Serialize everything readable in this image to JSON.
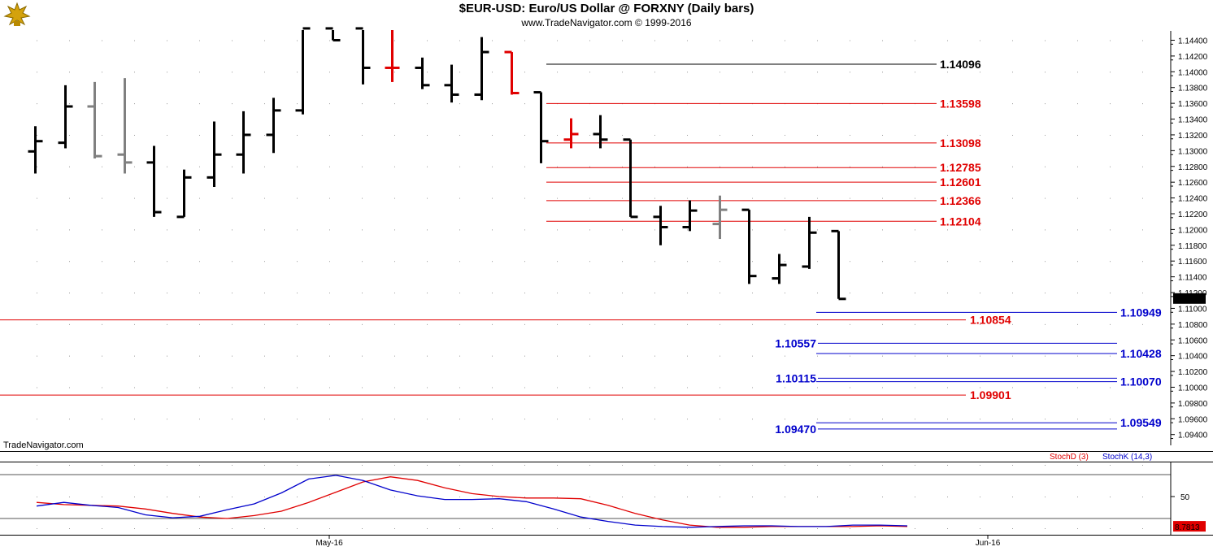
{
  "header": {
    "title": "$EUR-USD:  Euro/US Dollar @ FORXNY  (Daily bars)",
    "subtitle": "www.TradeNavigator.com © 1999-2016"
  },
  "watermark": "TradeNavigator.com",
  "colors": {
    "up_or_neutral": "#000000",
    "gray": "#808080",
    "red": "#e00000",
    "blue": "#0000cc",
    "stoch_d": "#e00000",
    "stoch_k": "#0000cc"
  },
  "chart_data": [
    {
      "type": "ohlc",
      "title": "$EUR-USD:  Euro/US Dollar @ FORXNY  (Daily bars)",
      "y_axis": {
        "ticks": [
          "1.14400",
          "1.14200",
          "1.14000",
          "1.13800",
          "1.13600",
          "1.13400",
          "1.13200",
          "1.13000",
          "1.12800",
          "1.12600",
          "1.12400",
          "1.12200",
          "1.12000",
          "1.11800",
          "1.11600",
          "1.11400",
          "1.11200",
          "1.11000",
          "1.10800",
          "1.10600",
          "1.10400",
          "1.10200",
          "1.10000",
          "1.09800",
          "1.09600",
          "1.09400"
        ],
        "ylim": [
          1.0925,
          1.1455
        ]
      },
      "x_axis": {
        "labels": [
          "May-16",
          "Jun-16"
        ]
      },
      "last_price": "1.11120",
      "bars": [
        {
          "o": 1.1299,
          "h": 1.1331,
          "l": 1.1271,
          "c": 1.1312,
          "color": "black"
        },
        {
          "o": 1.131,
          "h": 1.1383,
          "l": 1.1303,
          "c": 1.1356,
          "color": "black"
        },
        {
          "o": 1.1356,
          "h": 1.1387,
          "l": 1.129,
          "c": 1.1293,
          "color": "gray"
        },
        {
          "o": 1.1295,
          "h": 1.1392,
          "l": 1.1271,
          "c": 1.1285,
          "color": "gray"
        },
        {
          "o": 1.1285,
          "h": 1.1306,
          "l": 1.1216,
          "c": 1.1222,
          "color": "black"
        },
        {
          "o": 1.1216,
          "h": 1.1276,
          "l": 1.1216,
          "c": 1.1266,
          "color": "black"
        },
        {
          "o": 1.1266,
          "h": 1.1337,
          "l": 1.1254,
          "c": 1.1295,
          "color": "black"
        },
        {
          "o": 1.1295,
          "h": 1.135,
          "l": 1.1271,
          "c": 1.132,
          "color": "black"
        },
        {
          "o": 1.132,
          "h": 1.1367,
          "l": 1.1297,
          "c": 1.1351,
          "color": "black"
        },
        {
          "o": 1.1351,
          "h": 1.1455,
          "l": 1.1346,
          "c": 1.1455,
          "color": "black"
        },
        {
          "o": 1.1455,
          "h": 1.1455,
          "l": 1.144,
          "c": 1.144,
          "color": "black"
        },
        {
          "o": 1.1455,
          "h": 1.1455,
          "l": 1.1384,
          "c": 1.1405,
          "color": "black"
        },
        {
          "o": 1.1405,
          "h": 1.1455,
          "l": 1.1387,
          "c": 1.1405,
          "color": "red"
        },
        {
          "o": 1.1405,
          "h": 1.1418,
          "l": 1.1378,
          "c": 1.1383,
          "color": "black"
        },
        {
          "o": 1.1383,
          "h": 1.1409,
          "l": 1.1361,
          "c": 1.1371,
          "color": "black"
        },
        {
          "o": 1.1371,
          "h": 1.1444,
          "l": 1.1364,
          "c": 1.1425,
          "color": "black"
        },
        {
          "o": 1.1425,
          "h": 1.1425,
          "l": 1.1371,
          "c": 1.1373,
          "color": "red"
        },
        {
          "o": 1.1374,
          "h": 1.1374,
          "l": 1.1284,
          "c": 1.1312,
          "color": "black"
        },
        {
          "o": 1.1314,
          "h": 1.1341,
          "l": 1.1303,
          "c": 1.1321,
          "color": "red"
        },
        {
          "o": 1.1321,
          "h": 1.1345,
          "l": 1.1303,
          "c": 1.1314,
          "color": "black"
        },
        {
          "o": 1.1314,
          "h": 1.1314,
          "l": 1.1216,
          "c": 1.1216,
          "color": "black"
        },
        {
          "o": 1.1216,
          "h": 1.123,
          "l": 1.118,
          "c": 1.1203,
          "color": "black"
        },
        {
          "o": 1.1203,
          "h": 1.1237,
          "l": 1.1198,
          "c": 1.1224,
          "color": "black"
        },
        {
          "o": 1.1207,
          "h": 1.1243,
          "l": 1.1188,
          "c": 1.1225,
          "color": "gray"
        },
        {
          "o": 1.1225,
          "h": 1.1225,
          "l": 1.1131,
          "c": 1.1141,
          "color": "black"
        },
        {
          "o": 1.1138,
          "h": 1.1169,
          "l": 1.1131,
          "c": 1.1155,
          "color": "black"
        },
        {
          "o": 1.1153,
          "h": 1.1216,
          "l": 1.115,
          "c": 1.1196,
          "color": "black"
        },
        {
          "o": 1.1198,
          "h": 1.1198,
          "l": 1.1112,
          "c": 1.1112,
          "color": "black"
        }
      ],
      "levels_red_short": [
        "1.13598",
        "1.13098",
        "1.12785",
        "1.12601",
        "1.12366",
        "1.12104"
      ],
      "level_black": "1.14096",
      "levels_red_long": [
        "1.10854",
        "1.09901"
      ],
      "levels_blue_right": [
        "1.10949",
        "1.10428",
        "1.10070",
        "1.09549"
      ],
      "levels_blue_left": [
        "1.10557",
        "1.10115",
        "1.09470"
      ]
    },
    {
      "type": "line",
      "legend": [
        "StochD (3)",
        "StochK (14,3)"
      ],
      "y_ticks": [
        "50"
      ],
      "ylim": [
        0,
        100
      ],
      "last_value": "8.7813",
      "series": [
        {
          "name": "StochD (3)",
          "color": "#e00000",
          "values": [
            42,
            39,
            38,
            37,
            33,
            27,
            22,
            20,
            24,
            30,
            42,
            56,
            70,
            77,
            72,
            62,
            54,
            50,
            48,
            48,
            47,
            38,
            27,
            18,
            11,
            8,
            8,
            9,
            9,
            9,
            9,
            10,
            9
          ]
        },
        {
          "name": "StochK (14,3)",
          "color": "#0000cc",
          "values": [
            37,
            42,
            38,
            35,
            25,
            21,
            23,
            32,
            40,
            55,
            74,
            79,
            72,
            59,
            51,
            46,
            46,
            47,
            43,
            33,
            22,
            16,
            11,
            9,
            8,
            9,
            10,
            10,
            9,
            9,
            11,
            11,
            10
          ]
        }
      ]
    }
  ]
}
